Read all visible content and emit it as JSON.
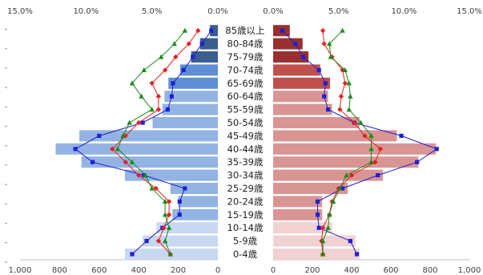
{
  "chart_data": {
    "type": "bar",
    "title": "",
    "ages": [
      "85歳以上",
      "80-84歳",
      "75-79歳",
      "70-74歳",
      "65-69歳",
      "60-64歳",
      "55-59歳",
      "50-54歳",
      "45-49歳",
      "40-44歳",
      "35-39歳",
      "30-34歳",
      "25-29歳",
      "20-24歳",
      "15-19歳",
      "10-14歳",
      "5-9歳",
      "0-4歳"
    ],
    "male_axis": {
      "ticks": [
        "1,000",
        "800",
        "600",
        "400",
        "200",
        "0"
      ],
      "tick_values": [
        1000,
        800,
        600,
        400,
        200,
        0
      ],
      "range": [
        0,
        1000
      ],
      "reversed": true
    },
    "female_axis": {
      "ticks": [
        "0",
        "200",
        "400",
        "600",
        "800",
        "1,000"
      ],
      "tick_values": [
        0,
        200,
        400,
        600,
        800,
        1000
      ],
      "range": [
        0,
        1000
      ]
    },
    "pct_axis_male": {
      "ticks": [
        "15.0%",
        "10.0%",
        "5.0%",
        "0.0%"
      ],
      "tick_values": [
        15,
        10,
        5,
        0
      ],
      "range": [
        0,
        15
      ],
      "reversed": true
    },
    "pct_axis_female": {
      "ticks": [
        "0.0%",
        "5.0%",
        "10.0%",
        "15.0%"
      ],
      "tick_values": [
        0,
        5,
        10,
        15
      ],
      "range": [
        0,
        15
      ]
    },
    "male_population": [
      40,
      90,
      135,
      190,
      250,
      270,
      280,
      330,
      700,
      820,
      690,
      470,
      240,
      200,
      230,
      310,
      380,
      470
    ],
    "female_population": [
      85,
      150,
      180,
      240,
      290,
      280,
      300,
      440,
      630,
      830,
      740,
      560,
      380,
      250,
      250,
      300,
      420,
      440
    ],
    "male_bar_colors": [
      "#3b5e8e",
      "#3b5e8e",
      "#3b5e8e",
      "#5e8fd4",
      "#5e8fd4",
      "#93b4e3",
      "#93b4e3",
      "#93b4e3",
      "#93b4e3",
      "#93b4e3",
      "#93b4e3",
      "#93b4e3",
      "#93b4e3",
      "#93b4e3",
      "#93b4e3",
      "#c8d8f0",
      "#c8d8f0",
      "#c8d8f0"
    ],
    "female_bar_colors": [
      "#993030",
      "#993030",
      "#993030",
      "#c0504d",
      "#c0504d",
      "#d99594",
      "#d99594",
      "#d99594",
      "#d99594",
      "#d99594",
      "#d99594",
      "#d99594",
      "#d99594",
      "#d99594",
      "#d99594",
      "#f0d2d2",
      "#f0d2d2",
      "#f0d2d2"
    ],
    "series": [
      {
        "color": "#1f1fd6",
        "marker": "square",
        "male_pct": [
          0.5,
          1.2,
          1.9,
          2.6,
          3.4,
          3.5,
          3.8,
          5.7,
          9.0,
          10.8,
          9.5,
          5.6,
          2.5,
          2.9,
          2.9,
          4.2,
          5.4,
          6.5
        ],
        "female_pct": [
          0.7,
          1.7,
          2.3,
          3.5,
          4.0,
          3.9,
          4.2,
          6.2,
          9.8,
          12.5,
          11.0,
          8.0,
          5.3,
          3.4,
          3.4,
          3.5,
          5.9,
          6.4
        ]
      },
      {
        "color": "#e52020",
        "marker": "diamond",
        "male_pct": [
          1.5,
          2.2,
          3.2,
          4.0,
          5.0,
          4.5,
          4.5,
          6.0,
          7.0,
          8.0,
          7.0,
          6.0,
          4.7,
          3.7,
          3.7,
          4.1,
          4.5,
          3.6
        ],
        "female_pct": [
          3.8,
          3.9,
          4.5,
          5.3,
          5.5,
          5.2,
          5.1,
          6.2,
          7.0,
          8.2,
          7.8,
          6.0,
          5.0,
          4.5,
          4.3,
          3.8,
          3.7,
          3.8
        ]
      },
      {
        "color": "#1a8a1a",
        "marker": "triangle",
        "male_pct": [
          2.5,
          3.3,
          4.3,
          5.6,
          6.5,
          5.8,
          5.0,
          6.7,
          7.2,
          7.6,
          6.5,
          5.5,
          5.0,
          4.0,
          4.0,
          3.7,
          4.0,
          3.6
        ],
        "female_pct": [
          5.3,
          4.3,
          4.4,
          5.5,
          5.8,
          5.9,
          5.8,
          6.7,
          7.5,
          7.5,
          7.5,
          5.6,
          5.1,
          4.6,
          4.3,
          4.2,
          3.8,
          3.8
        ]
      }
    ]
  }
}
